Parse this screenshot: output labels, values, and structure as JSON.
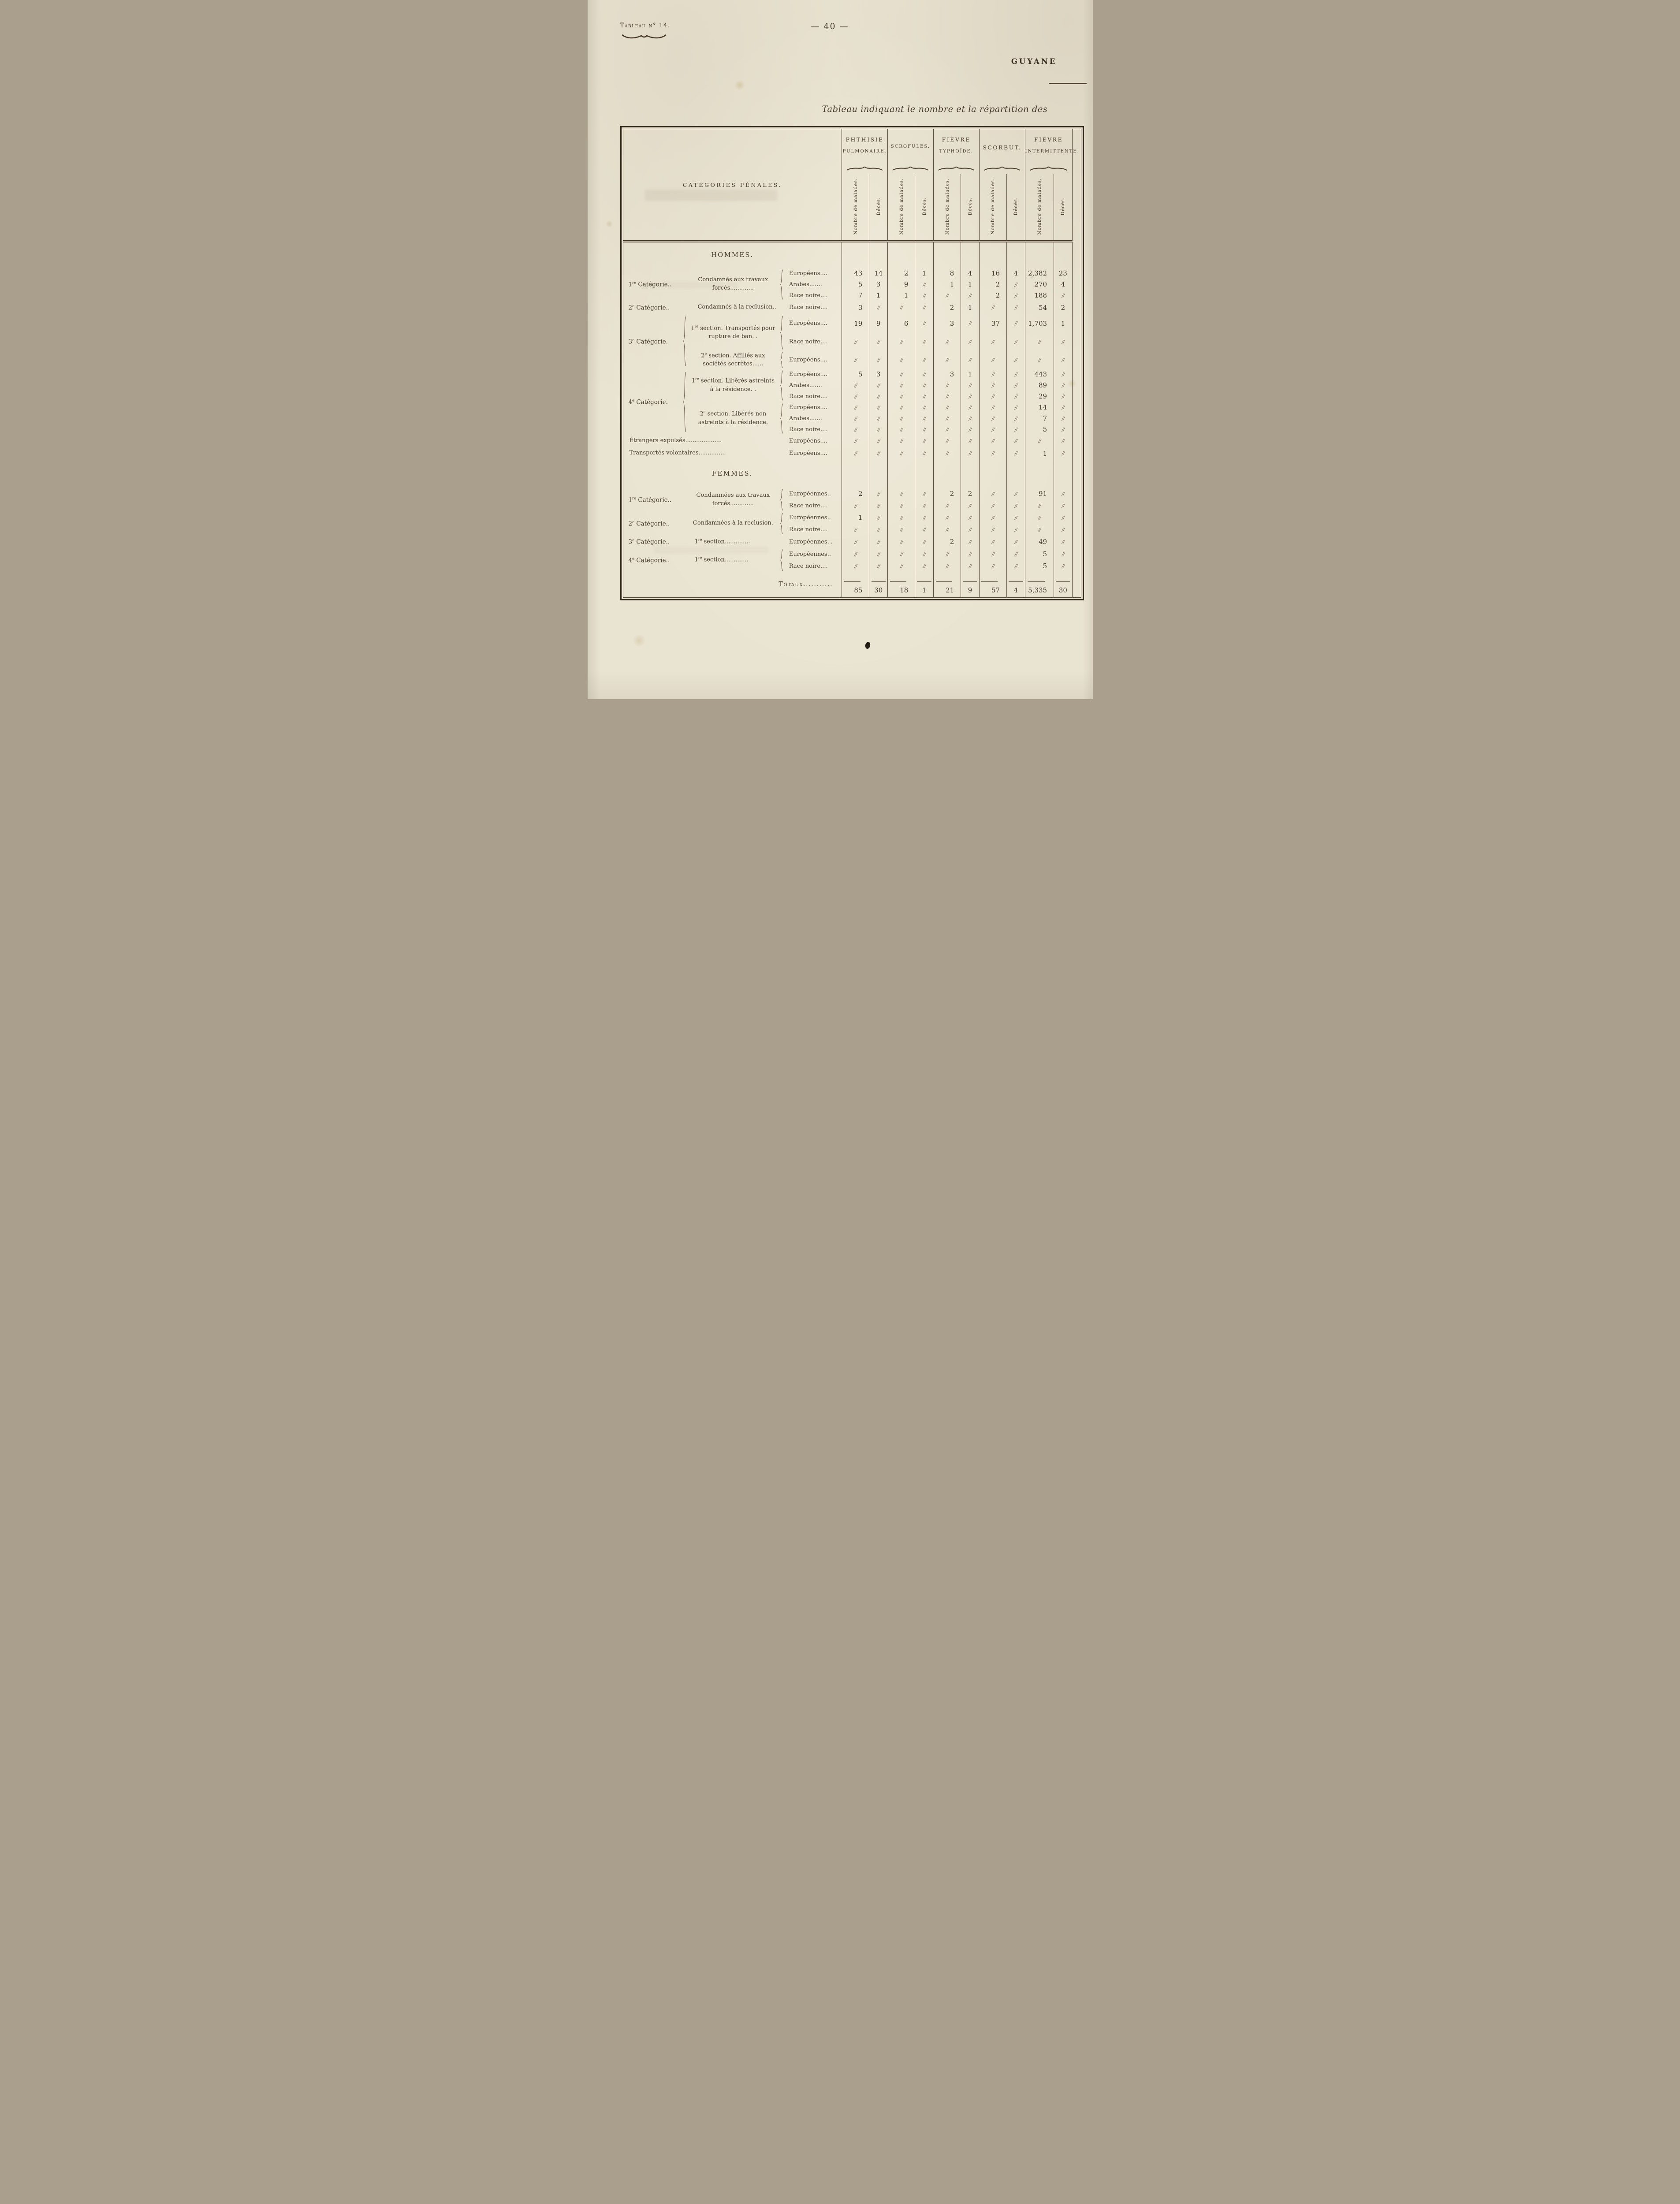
{
  "header": {
    "tableau_label": "Tableau n° 14.",
    "page_number": "— 40 —",
    "region": "GUYANE",
    "title": "Tableau indiquant le nombre et la répartition des"
  },
  "table": {
    "categories_header": "CATÉGORIES PÉNALES.",
    "col_groups": [
      {
        "line1": "PHTHISIE",
        "line2": "PULMONAIRE."
      },
      {
        "line1": "SCROFULES.",
        "line2": "",
        "small": true
      },
      {
        "line1": "FIÈVRE",
        "line2": "TYPHOÏDE."
      },
      {
        "line1": "SCORBUT.",
        "line2": "",
        "mid": true
      },
      {
        "line1": "FIÈVRE",
        "line2": "INTERMITTENTE."
      }
    ],
    "sub_headers": [
      "Nombre de malades.",
      "Décès."
    ],
    "null_mark": "//",
    "rows": [
      {
        "type": "section",
        "label": "HOMMES.",
        "h": 60
      },
      {
        "type": "data",
        "h": 25,
        "cat": {
          "t": "1^re^ Catégorie..",
          "cs": 2,
          "rs": 3
        },
        "desc": {
          "t": "Condamnés aux travaux forcés.............",
          "rs": 3
        },
        "brace2": {
          "rs": 3
        },
        "race": "Européens....",
        "v": [
          "43",
          "14",
          "2",
          "1",
          "8",
          "4",
          "16",
          "4",
          "2,382",
          "23"
        ]
      },
      {
        "type": "data",
        "h": 25,
        "race": "Arabes.......",
        "v": [
          "5",
          "3",
          "9",
          "//",
          "1",
          "1",
          "2",
          "//",
          "270",
          "4"
        ]
      },
      {
        "type": "data",
        "h": 25,
        "race": "Race noire....",
        "v": [
          "7",
          "1",
          "1",
          "//",
          "//",
          "//",
          "2",
          "//",
          "188",
          "//"
        ]
      },
      {
        "type": "data",
        "h": 30,
        "cat": {
          "t": "2^e^ Catégorie..",
          "cs": 2
        },
        "desc": {
          "t": "Condamnés à la reclusion..",
          "cs": 2
        },
        "race": "Race noire....",
        "v": [
          "3",
          "//",
          "//",
          "//",
          "2",
          "1",
          "//",
          "//",
          "54",
          "2"
        ]
      },
      {
        "type": "data",
        "h": 42,
        "cat": {
          "t": "3^e^ Catégorie.",
          "rs": 3
        },
        "brace1": {
          "rs": 3
        },
        "desc": {
          "t": "1^re^ section. Transportés pour rupture de ban. .",
          "rs": 2
        },
        "brace2": {
          "rs": 2
        },
        "race": "Européens....",
        "v": [
          "19",
          "9",
          "6",
          "//",
          "3",
          "//",
          "37",
          "//",
          "1,703",
          "1"
        ]
      },
      {
        "type": "data",
        "h": 42,
        "race": "Race noire....",
        "v": [
          "//",
          "//",
          "//",
          "//",
          "//",
          "//",
          "//",
          "//",
          "//",
          "//"
        ]
      },
      {
        "type": "data",
        "h": 40,
        "desc": {
          "t": "2^e^ section. Affiliés aux sociétés secrètes......"
        },
        "brace2": {},
        "race": "Européens....",
        "v": [
          "//",
          "//",
          "//",
          "//",
          "//",
          "//",
          "//",
          "//",
          "//",
          "//"
        ]
      },
      {
        "type": "data",
        "h": 25,
        "cat": {
          "t": "4^e^ Catégorie.",
          "rs": 6
        },
        "brace1": {
          "rs": 6
        },
        "desc": {
          "t": "1^re^ section. Libérés astreints à la résidence. .",
          "rs": 3
        },
        "brace2": {
          "rs": 3
        },
        "race": "Européens....",
        "v": [
          "5",
          "3",
          "//",
          "//",
          "3",
          "1",
          "//",
          "//",
          "443",
          "//"
        ]
      },
      {
        "type": "data",
        "h": 25,
        "race": "Arabes.......",
        "v": [
          "//",
          "//",
          "//",
          "//",
          "//",
          "//",
          "//",
          "//",
          "89",
          "//"
        ]
      },
      {
        "type": "data",
        "h": 25,
        "race": "Race noire....",
        "v": [
          "//",
          "//",
          "//",
          "//",
          "//",
          "//",
          "//",
          "//",
          "29",
          "//"
        ]
      },
      {
        "type": "data",
        "h": 25,
        "desc": {
          "t": "2^e^ section. Libérés non astreints à la résidence.",
          "rs": 3
        },
        "brace2": {
          "rs": 3
        },
        "race": "Européens....",
        "v": [
          "//",
          "//",
          "//",
          "//",
          "//",
          "//",
          "//",
          "//",
          "14",
          "//"
        ]
      },
      {
        "type": "data",
        "h": 25,
        "race": "Arabes.......",
        "v": [
          "//",
          "//",
          "//",
          "//",
          "//",
          "//",
          "//",
          "//",
          "7",
          "//"
        ]
      },
      {
        "type": "data",
        "h": 25,
        "race": "Race noire....",
        "v": [
          "//",
          "//",
          "//",
          "//",
          "//",
          "//",
          "//",
          "//",
          "5",
          "//"
        ]
      },
      {
        "type": "data",
        "h": 28,
        "desc": {
          "t": "Étrangers expulsés....................",
          "cs": 4,
          "left": true
        },
        "race": "Européens....",
        "v": [
          "//",
          "//",
          "//",
          "//",
          "//",
          "//",
          "//",
          "//",
          "//",
          "//"
        ]
      },
      {
        "type": "data",
        "h": 28,
        "desc": {
          "t": "Transportés volontaires...............",
          "cs": 4,
          "left": true
        },
        "race": "Européens....",
        "v": [
          "//",
          "//",
          "//",
          "//",
          "//",
          "//",
          "//",
          "//",
          "1",
          "//"
        ]
      },
      {
        "type": "section",
        "label": "FEMMES.",
        "h": 64
      },
      {
        "type": "data",
        "h": 27,
        "cat": {
          "t": "1^re^ Catégorie..",
          "cs": 2,
          "rs": 2
        },
        "desc": {
          "t": "Condamnées aux travaux forcés.............",
          "rs": 2
        },
        "brace2": {
          "rs": 2
        },
        "race": "Européennes..",
        "v": [
          "2",
          "//",
          "//",
          "//",
          "2",
          "2",
          "//",
          "//",
          "91",
          "//"
        ]
      },
      {
        "type": "data",
        "h": 27,
        "race": "Race noire....",
        "v": [
          "//",
          "//",
          "//",
          "//",
          "//",
          "//",
          "//",
          "//",
          "//",
          "//"
        ]
      },
      {
        "type": "data",
        "h": 27,
        "cat": {
          "t": "2^e^ Catégorie..",
          "cs": 2,
          "rs": 2
        },
        "desc": {
          "t": "Condamnées à la reclusion.",
          "rs": 2
        },
        "brace2": {
          "rs": 2
        },
        "race": "Européennes..",
        "v": [
          "1",
          "//",
          "//",
          "//",
          "//",
          "//",
          "//",
          "//",
          "//",
          "//"
        ]
      },
      {
        "type": "data",
        "h": 27,
        "race": "Race noire....",
        "v": [
          "//",
          "//",
          "//",
          "//",
          "//",
          "//",
          "//",
          "//",
          "//",
          "//"
        ]
      },
      {
        "type": "data",
        "h": 29,
        "cat": {
          "t": "3^e^ Catégorie..",
          "cs": 2
        },
        "desc": {
          "t": "1^re^ section..............",
          "cs": 2,
          "left": true
        },
        "race": "Européennes. .",
        "v": [
          "//",
          "//",
          "//",
          "//",
          "2",
          "//",
          "//",
          "//",
          "49",
          "//"
        ]
      },
      {
        "type": "data",
        "h": 27,
        "cat": {
          "t": "4^e^ Catégorie..",
          "cs": 2,
          "rs": 2
        },
        "desc": {
          "t": "1^re^ section.............",
          "rs": 2,
          "left": true
        },
        "brace2": {
          "rs": 2
        },
        "race": "Européennes..",
        "v": [
          "//",
          "//",
          "//",
          "//",
          "//",
          "//",
          "//",
          "//",
          "5",
          "//"
        ]
      },
      {
        "type": "data",
        "h": 27,
        "race": "Race noire....",
        "v": [
          "//",
          "//",
          "//",
          "//",
          "//",
          "//",
          "//",
          "//",
          "5",
          "//"
        ]
      },
      {
        "type": "totals",
        "h": 58,
        "label": "Totaux...........",
        "v": [
          "85",
          "30",
          "18",
          "1",
          "21",
          "9",
          "57",
          "4",
          "5,335",
          "30"
        ]
      }
    ]
  }
}
